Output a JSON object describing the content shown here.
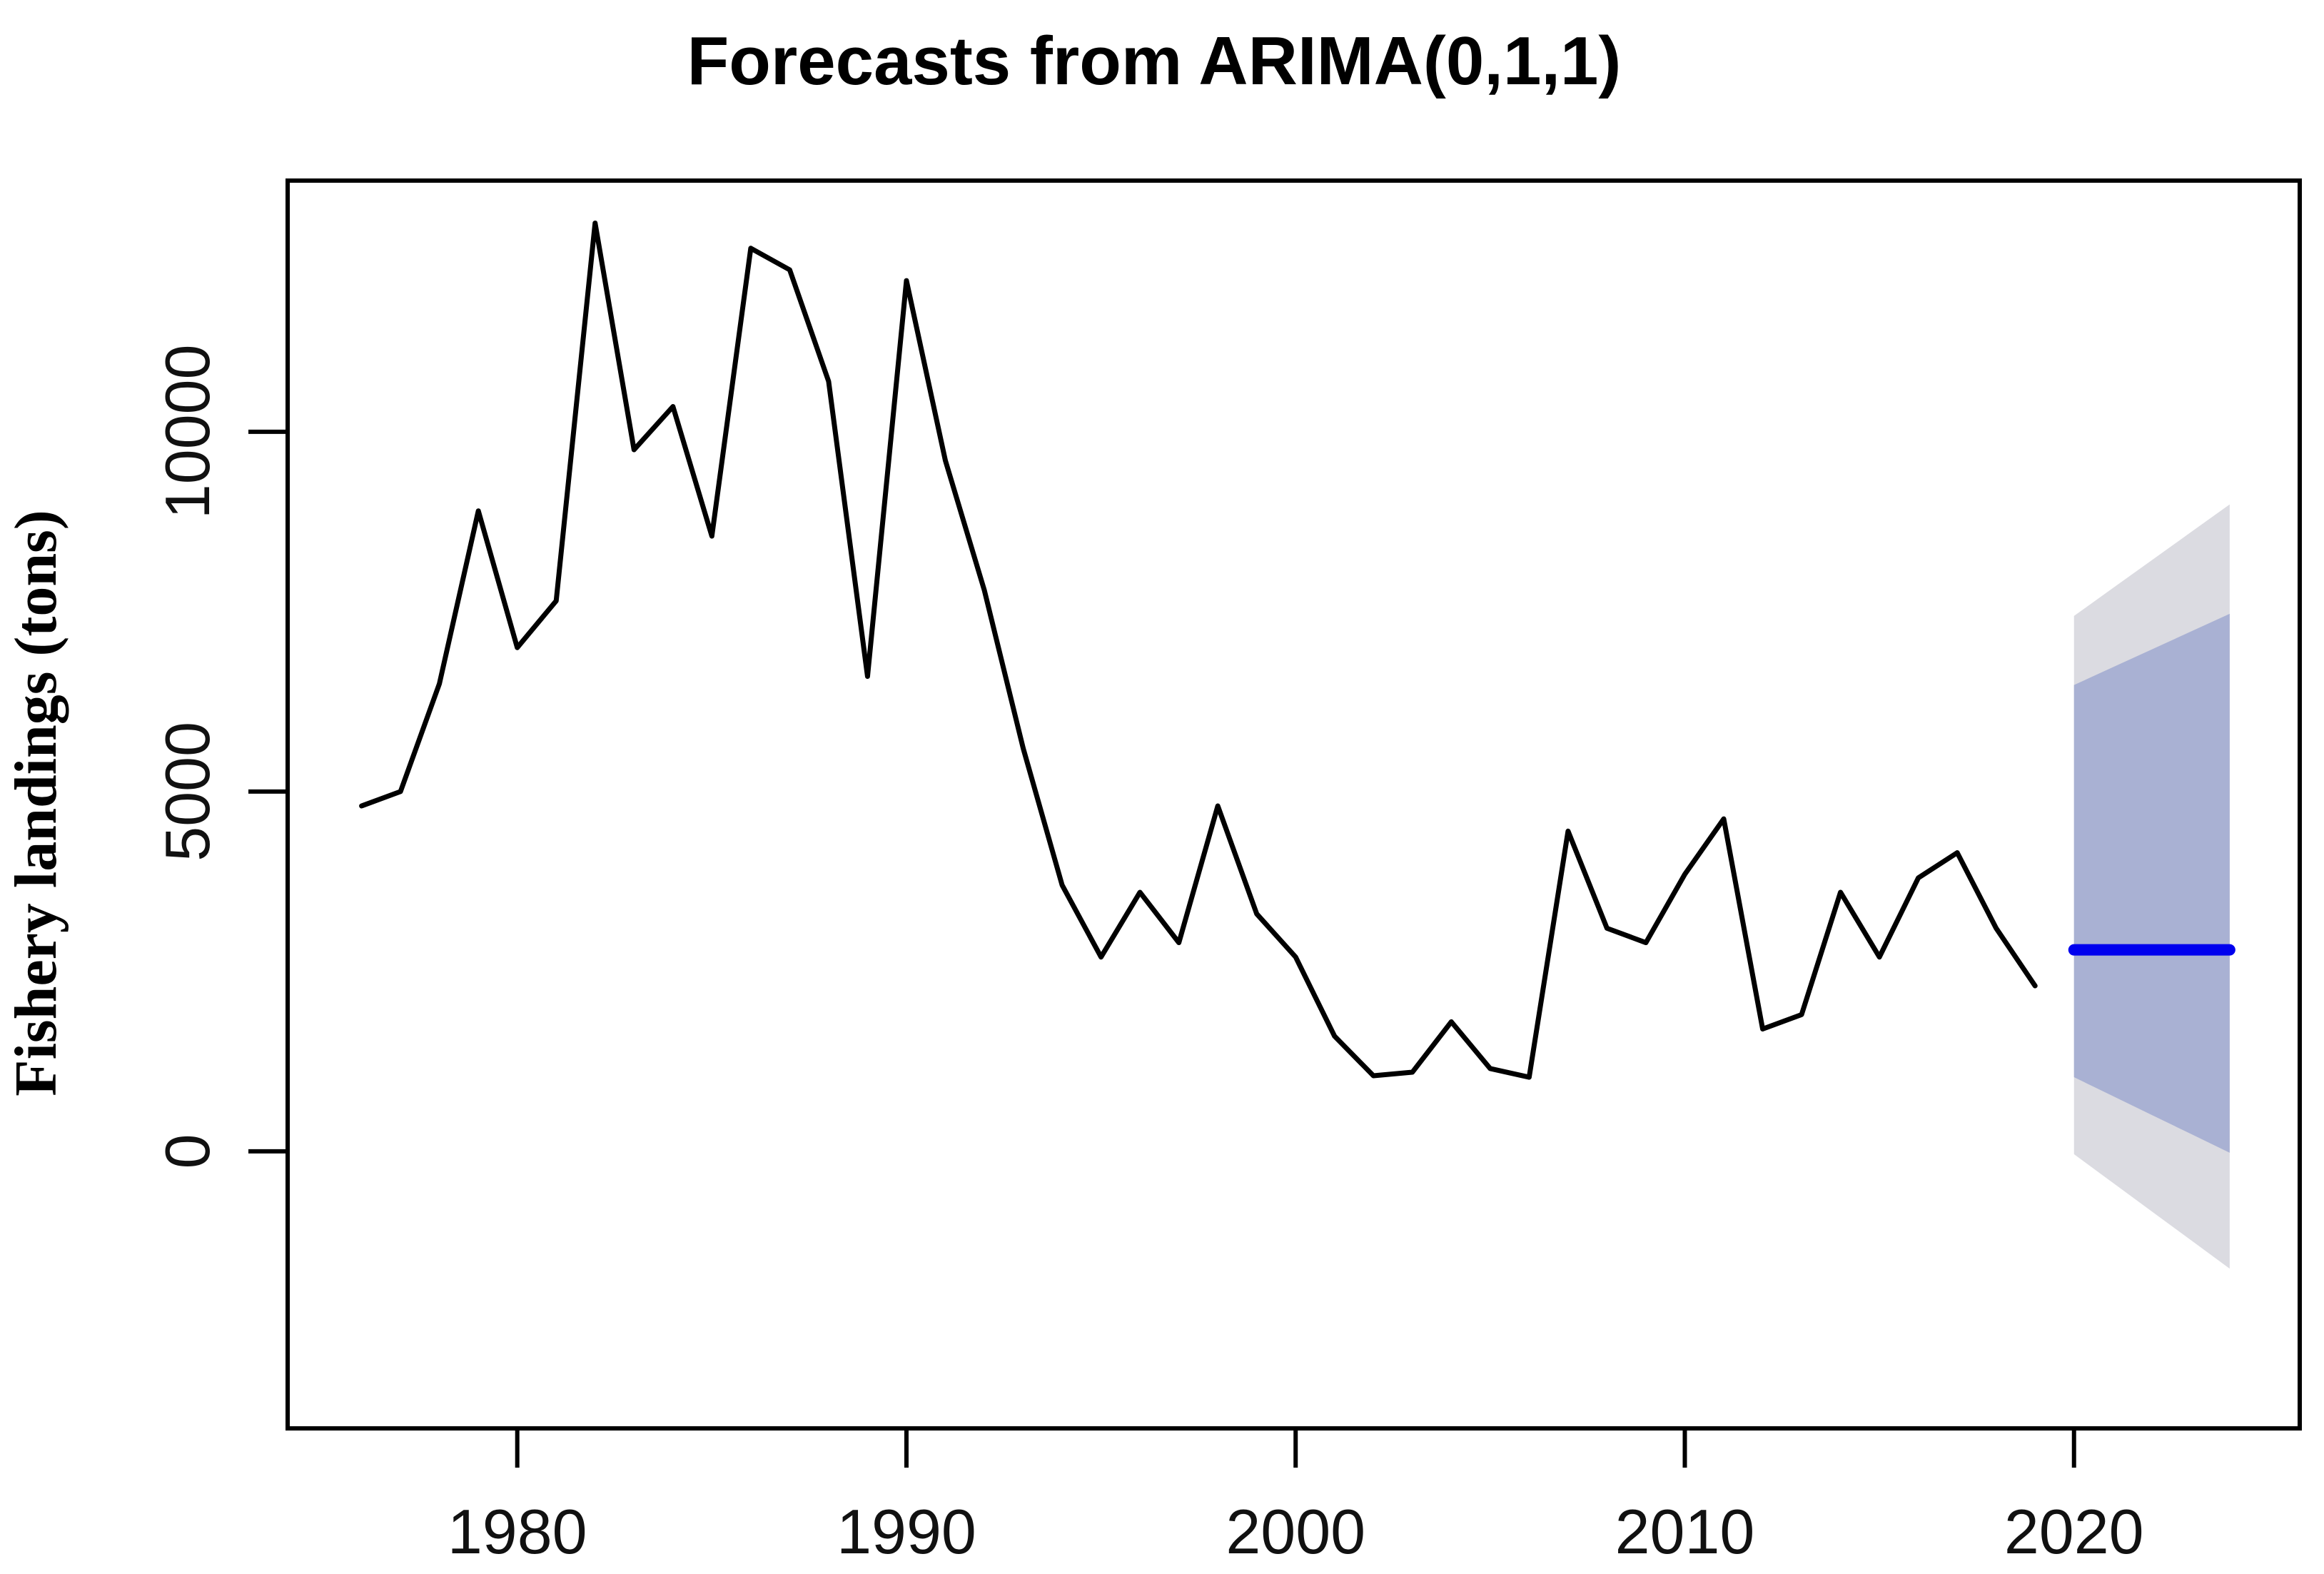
{
  "title": "Forecasts from ARIMA(0,1,1)",
  "colors": {
    "background": "#ffffff",
    "observed_line": "#000000",
    "forecast_line": "#0000EE",
    "interval_80": "#A9B1D3",
    "interval_95": "#DBDBE1",
    "axis": "#000000",
    "tick_text": "#111111"
  },
  "chart_data": {
    "type": "line",
    "title": "Forecasts from ARIMA(0,1,1)",
    "xlabel": "",
    "ylabel": "Fishery landings (tons)",
    "grid": false,
    "legend_position": "none",
    "xlim": [
      1974.1,
      2025.8
    ],
    "ylim": [
      -3850,
      13490
    ],
    "x_ticks": [
      1980,
      1990,
      2000,
      2010,
      2020
    ],
    "y_ticks": [
      0,
      5000,
      10000
    ],
    "series": [
      {
        "name": "observed",
        "x": [
          1976,
          1977,
          1978,
          1979,
          1980,
          1981,
          1982,
          1983,
          1984,
          1985,
          1986,
          1987,
          1988,
          1989,
          1990,
          1991,
          1992,
          1993,
          1994,
          1995,
          1996,
          1997,
          1998,
          1999,
          2000,
          2001,
          2002,
          2003,
          2004,
          2005,
          2006,
          2007,
          2008,
          2009,
          2010,
          2011,
          2012,
          2013,
          2014,
          2015,
          2016,
          2017,
          2018,
          2019
        ],
        "values": [
          4800,
          5000,
          6500,
          8900,
          7000,
          7650,
          12900,
          9750,
          10350,
          8550,
          12550,
          12250,
          10700,
          6600,
          12100,
          9600,
          7800,
          5600,
          3700,
          2700,
          3600,
          2900,
          4800,
          3300,
          2700,
          1600,
          1050,
          1100,
          1800,
          1150,
          1030,
          4450,
          3100,
          2900,
          3850,
          4620,
          1700,
          1900,
          3600,
          2700,
          3800,
          4150,
          3100,
          2300
        ]
      },
      {
        "name": "forecast-mean",
        "x": [
          2020,
          2021,
          2022,
          2023,
          2024
        ],
        "values": [
          2800,
          2800,
          2800,
          2800,
          2800
        ]
      }
    ],
    "intervals": [
      {
        "level": 80,
        "color": "#A9B1D3",
        "x": [
          2020,
          2021,
          2022,
          2023,
          2024
        ],
        "lower": [
          1030,
          768,
          505,
          243,
          -20
        ],
        "upper": [
          6480,
          6728,
          6975,
          7223,
          7470
        ]
      },
      {
        "level": 95,
        "color": "#DBDBE1",
        "x": [
          2020,
          2021,
          2022,
          2023,
          2024
        ],
        "lower": [
          -40,
          -438,
          -835,
          -1233,
          -1630
        ],
        "upper": [
          7440,
          7828,
          8215,
          8603,
          8990
        ]
      }
    ]
  }
}
